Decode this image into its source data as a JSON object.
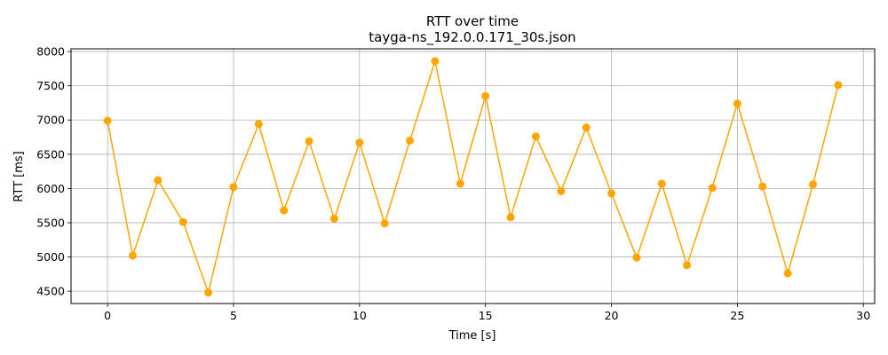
{
  "chart_data": {
    "type": "line",
    "title": "RTT over time",
    "subtitle": "tayga-ns_192.0.0.171_30s.json",
    "xlabel": "Time [s]",
    "ylabel": "RTT [ms]",
    "xlim": [
      -1.45,
      30.45
    ],
    "ylim": [
      4320,
      8040
    ],
    "xticks": [
      0,
      5,
      10,
      15,
      20,
      25,
      30
    ],
    "yticks": [
      4500,
      5000,
      5500,
      6000,
      6500,
      7000,
      7500,
      8000
    ],
    "grid": true,
    "color": "#ffa500",
    "x": [
      0,
      1,
      2,
      3,
      4,
      5,
      6,
      7,
      8,
      9,
      10,
      11,
      12,
      13,
      14,
      15,
      16,
      17,
      18,
      19,
      20,
      21,
      22,
      23,
      24,
      25,
      26,
      27,
      28,
      29
    ],
    "y": [
      6990,
      5020,
      6120,
      5510,
      4480,
      6020,
      6940,
      5680,
      6690,
      5560,
      6670,
      5490,
      6700,
      7860,
      6070,
      7350,
      5580,
      6760,
      5960,
      6890,
      5930,
      4990,
      6070,
      4880,
      6010,
      7240,
      6030,
      4760,
      6060,
      7510
    ]
  }
}
